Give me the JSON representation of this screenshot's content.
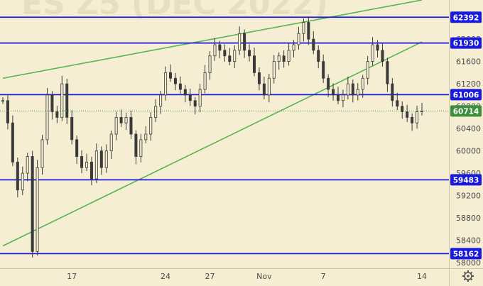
{
  "chart_data": {
    "type": "candlestick",
    "watermark": "ES Z5 (DEC 2022)",
    "y_axis": {
      "ticks": [
        58000,
        58400,
        58800,
        59200,
        59600,
        60000,
        60400,
        60800,
        61200,
        61600,
        62000
      ],
      "range": [
        57900,
        62700
      ]
    },
    "x_axis": {
      "ticks": [
        "17",
        "24",
        "27",
        "Nov",
        "7",
        "14"
      ]
    },
    "horizontal_levels": [
      {
        "value": 62392,
        "label": "62392"
      },
      {
        "value": 61930,
        "label": "61930"
      },
      {
        "value": 61006,
        "label": "61006"
      },
      {
        "value": 59483,
        "label": "59483"
      },
      {
        "value": 58162,
        "label": "58162"
      }
    ],
    "last_price": {
      "value": 60714,
      "label": "60714"
    },
    "close_series": [
      60900,
      60500,
      59800,
      59300,
      59600,
      59900,
      58200,
      59700,
      60200,
      61000,
      60700,
      60600,
      61200,
      60600,
      60200,
      59900,
      59700,
      59800,
      59500,
      60000,
      59700,
      60000,
      60300,
      60600,
      60500,
      60600,
      60300,
      59900,
      60200,
      60300,
      60600,
      60800,
      61000,
      61400,
      61300,
      61200,
      61100,
      61000,
      60900,
      60800,
      61100,
      61400,
      61700,
      61900,
      61800,
      61700,
      61600,
      61800,
      62100,
      61800,
      61700,
      61400,
      61200,
      61000,
      61300,
      61600,
      61700,
      61600,
      61800,
      61900,
      62100,
      62300,
      62000,
      61800,
      61600,
      61300,
      61100,
      61000,
      60900,
      61000,
      61200,
      61000,
      61100,
      61300,
      61600,
      61900,
      61800,
      61600,
      61200,
      60900,
      60800,
      60700,
      60600,
      60500,
      60700,
      60714
    ],
    "trend_lines": [
      {
        "color": "#55b550",
        "from": {
          "index": 0,
          "value": 61300
        },
        "to": {
          "index": 85,
          "value": 62700
        }
      },
      {
        "color": "#55b550",
        "from": {
          "index": 0,
          "value": 58300
        },
        "to": {
          "index": 85,
          "value": 61950
        }
      }
    ],
    "colors": {
      "background": "#f5eed3",
      "candles": "#3a3a3a",
      "level_line": "#1a1adc",
      "badge": "#1a1adc",
      "last_price_badge": "#3c8f3c",
      "trend_line": "#55b550",
      "axis_text": "#4a4a4a"
    },
    "icons": [
      "settings-gear-icon"
    ]
  }
}
